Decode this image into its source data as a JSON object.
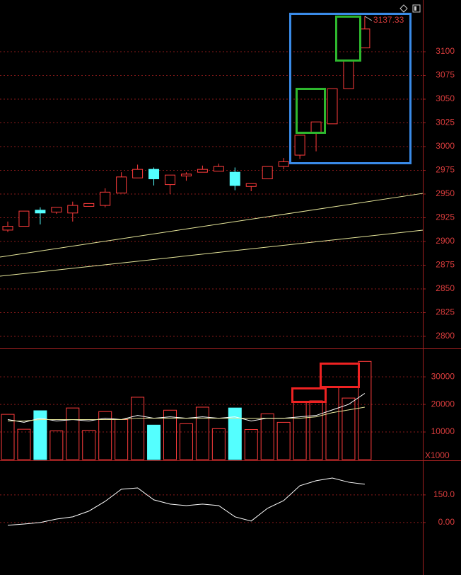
{
  "chart_data": [
    {
      "type": "candlestick",
      "open": [
        2912,
        2916,
        2933,
        2931,
        2930,
        2937,
        2938,
        2951,
        2967,
        2976,
        2960,
        2969,
        2973,
        2974,
        2973,
        2958,
        2966,
        2979,
        2991,
        3015,
        3024,
        3061,
        3104
      ],
      "close": [
        2916,
        2932,
        2930,
        2936,
        2938,
        2940,
        2952,
        2968,
        2976,
        2966,
        2970,
        2971,
        2976,
        2979,
        2959,
        2961,
        2979,
        2984,
        3012,
        3026,
        3061,
        3090,
        3124
      ],
      "high": [
        2921,
        2932,
        2936,
        2936,
        2942,
        2940,
        2956,
        2973,
        2981,
        2978,
        2970,
        2973,
        2980,
        2982,
        2978,
        2961,
        2979,
        2988,
        3012,
        3026,
        3061,
        3090,
        3137.33
      ],
      "low": [
        2910,
        2916,
        2918,
        2929,
        2921,
        2937,
        2936,
        2951,
        2967,
        2959,
        2950,
        2964,
        2973,
        2974,
        2954,
        2953,
        2966,
        2976,
        2987,
        2995,
        3024,
        3061,
        3104
      ],
      "up_color": "#ff3c3c",
      "down_color": "#54ffff",
      "trend_lines": [
        {
          "color": "#e6e69a",
          "values": [
            2883.6,
            2950.7
          ]
        },
        {
          "color": "#e6e69a",
          "values": [
            2863.4,
            2911.9
          ]
        }
      ],
      "ylim": [
        2787.3,
        3154.5
      ],
      "yticks": [
        2800,
        2825,
        2850,
        2875,
        2900,
        2925,
        2950,
        2975,
        3000,
        3025,
        3050,
        3075,
        3100
      ],
      "grid": true
    },
    {
      "type": "bar",
      "values": [
        16400,
        11000,
        17700,
        10400,
        18700,
        10600,
        17400,
        14500,
        22600,
        12500,
        17900,
        13000,
        19000,
        11200,
        18700,
        10900,
        16600,
        13500,
        21000,
        21300,
        26200,
        22300,
        35600
      ],
      "series": [
        {
          "color": "#ffffff",
          "values": [
            14500,
            13500,
            15000,
            14000,
            14500,
            14000,
            15000,
            14500,
            16000,
            15000,
            15500,
            15000,
            15500,
            15000,
            15500,
            14000,
            15000,
            15000,
            15500,
            16000,
            18000,
            20000,
            24000
          ]
        },
        {
          "color": "#e6e69a",
          "values": [
            14000,
            14000,
            14500,
            14500,
            14500,
            14500,
            14500,
            14500,
            15000,
            15000,
            15000,
            15000,
            15000,
            15000,
            15000,
            15000,
            15000,
            15000,
            15000,
            15500,
            17000,
            18000,
            19000
          ]
        }
      ],
      "unit_label": "X1000",
      "ylim": [
        0,
        40300
      ],
      "yticks": [
        10000,
        20000,
        30000
      ],
      "grid": true
    },
    {
      "type": "line",
      "values": [
        -15,
        -8,
        0,
        19,
        31,
        62,
        115,
        181,
        188,
        123,
        100,
        92,
        100,
        92,
        31,
        8,
        77,
        119,
        200,
        227,
        242,
        219,
        208
      ],
      "color": "#ffffff",
      "ylim": [
        -285,
        338
      ],
      "yticks": [
        {
          "value": 150,
          "label": "150.0"
        },
        {
          "value": 0,
          "label": "0.00"
        }
      ],
      "grid": true
    }
  ]
}
